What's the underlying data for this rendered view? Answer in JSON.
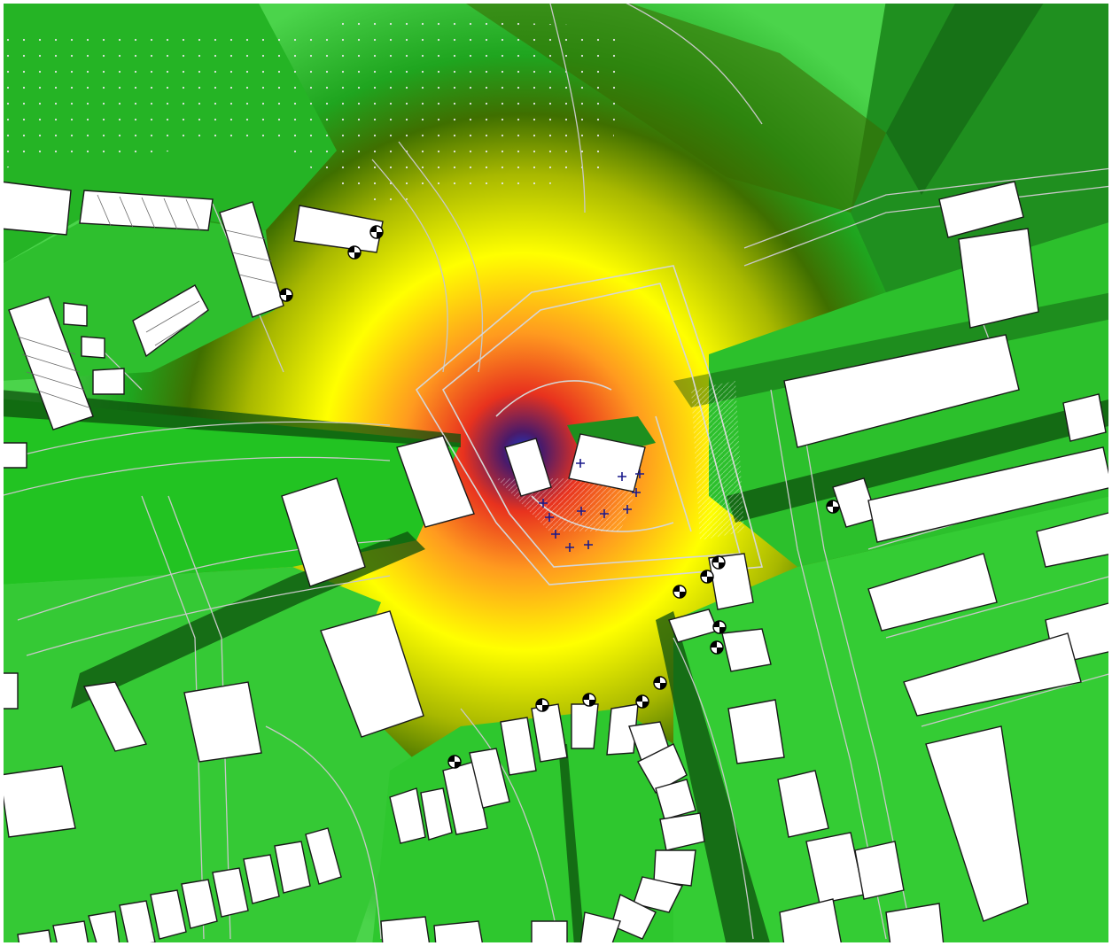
{
  "map": {
    "colors": {
      "green_light": "#7be57b",
      "green": "#22cc22",
      "green_dark": "#0d5a0d",
      "olive": "#6f7a00",
      "yellow": "#ffff00",
      "orange": "#ff9a1f",
      "red": "#e8321e",
      "purple": "#4a1a6a",
      "blue": "#1a3cc8",
      "building_fill": "#ffffff",
      "building_stroke": "#1a1a1a",
      "road_line": "#c8c8c8",
      "source_marker": "#1a1a8c"
    },
    "icons": {
      "receptor": "receptor-point-icon",
      "source": "noise-source-cross-icon"
    }
  }
}
